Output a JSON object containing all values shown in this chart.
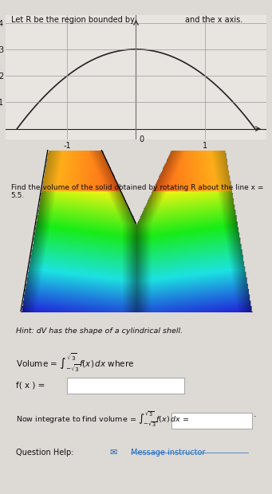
{
  "title_text": "Let R be the region bounded by",
  "title_text2": "and the x axis.",
  "find_text": "Find the volume of the solid obtained by rotating R about the line x = 5.5.",
  "hint_text": "Hint: dV has the shape of a cylindrical shell.",
  "message_instructor": "Message instructor",
  "bg_color": "#ddd9d5",
  "graph_bg": "#e8e4e0",
  "plot_xlim": [
    -1.9,
    1.9
  ],
  "plot_ylim": [
    -0.4,
    4.3
  ],
  "x_ticks": [
    -1,
    1
  ],
  "y_ticks": [
    1,
    2,
    3,
    4
  ],
  "curve_color": "#222222",
  "axis_color": "#222222",
  "grid_color": "#999999",
  "text_color": "#111111",
  "link_color": "#1a6abf",
  "input_box_color": "#ffffff",
  "input_box_edge": "#aaaaaa"
}
